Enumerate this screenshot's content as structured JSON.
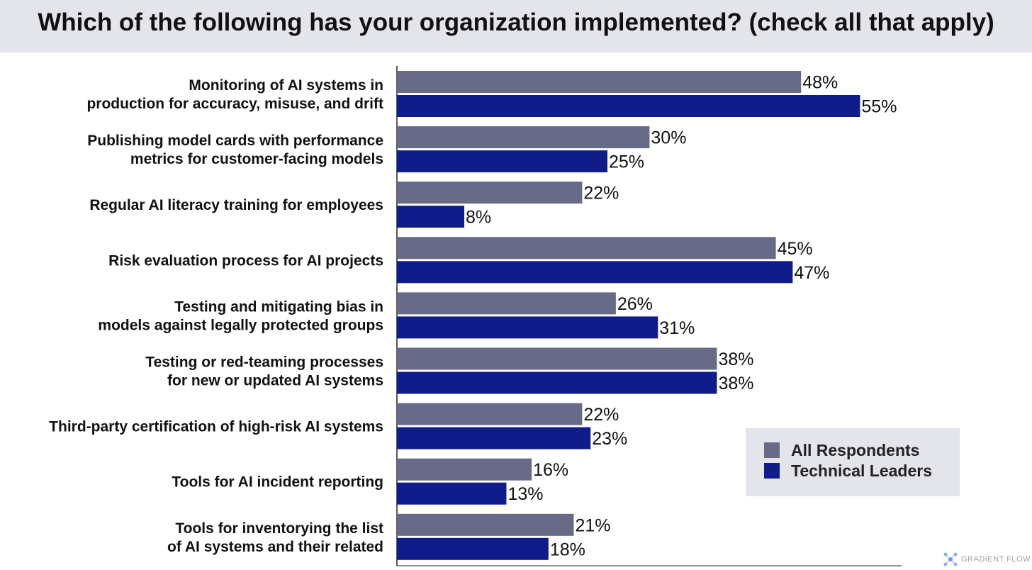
{
  "title": "Which of the following has your organization implemented? (check all that apply)",
  "legend": {
    "items": [
      {
        "label": "All Respondents",
        "color": "#676b88"
      },
      {
        "label": "Technical Leaders",
        "color": "#0f1c8a"
      }
    ]
  },
  "logo": {
    "text": "GRADIENT FLOW",
    "icon": "network-nodes-icon"
  },
  "chart_data": {
    "type": "bar",
    "orientation": "horizontal",
    "categories": [
      [
        "Monitoring of AI systems in",
        "production for accuracy, misuse, and drift"
      ],
      [
        "Publishing model cards with performance",
        "metrics for customer-facing models"
      ],
      [
        "Regular AI literacy training for employees"
      ],
      [
        "Risk evaluation process for AI projects"
      ],
      [
        "Testing and mitigating bias in",
        "models against legally protected groups"
      ],
      [
        "Testing or red-teaming processes",
        "for new or updated AI systems"
      ],
      [
        "Third-party certification of high-risk AI systems"
      ],
      [
        "Tools for AI incident reporting"
      ],
      [
        "Tools for inventorying the list",
        "of AI systems and their related"
      ]
    ],
    "series": [
      {
        "name": "All Respondents",
        "color": "#676b88",
        "values": [
          48,
          30,
          22,
          45,
          26,
          38,
          22,
          16,
          21
        ]
      },
      {
        "name": "Technical Leaders",
        "color": "#0f1c8a",
        "values": [
          55,
          25,
          8,
          47,
          31,
          38,
          23,
          13,
          18
        ]
      }
    ],
    "value_suffix": "%",
    "xlim": [
      0,
      60
    ],
    "grid": false,
    "legend_position": "bottom-right"
  }
}
